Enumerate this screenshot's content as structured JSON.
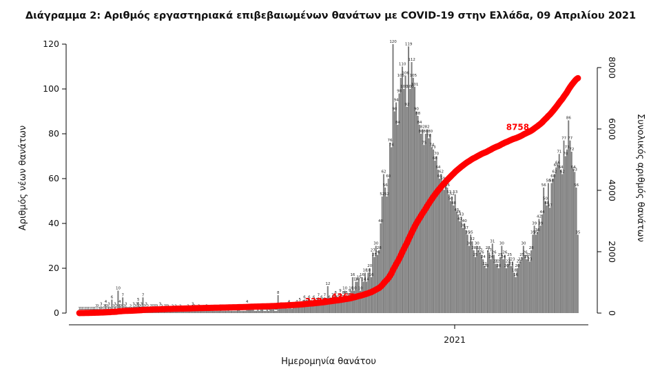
{
  "chart_data": {
    "type": "bar",
    "title": "Διάγραμμα 2: Αριθμός εργαστηριακά επιβεβαιωμένων θανάτων με COVID-19 στην Ελλάδα, 09 Απριλίου 2021",
    "xlabel": "Ημερομηνία θανάτου",
    "ylabel_left": "Αριθμός νέων θανάτων",
    "ylabel_right": "Συνολικός αριθμός θανάτων",
    "x_tick_labels": [
      "2021"
    ],
    "ylim_left": [
      0,
      120
    ],
    "yticks_left": [
      0,
      20,
      40,
      60,
      80,
      100,
      120
    ],
    "ylim_right": [
      0,
      8800
    ],
    "yticks_right": [
      0,
      2000,
      4000,
      6000,
      8000
    ],
    "grid": false,
    "legend": "none",
    "colors": {
      "bars": "#808080",
      "cumulative": "#ff0000"
    },
    "daily_deaths": [
      1,
      1,
      1,
      1,
      1,
      1,
      1,
      1,
      1,
      1,
      1,
      2,
      2,
      1,
      3,
      1,
      2,
      4,
      2,
      3,
      1,
      6,
      2,
      3,
      2,
      10,
      4,
      2,
      7,
      2,
      3,
      1,
      1,
      2,
      1,
      3,
      2,
      3,
      5,
      2,
      3,
      7,
      2,
      3,
      2,
      1,
      2,
      2,
      2,
      2,
      2,
      1,
      3,
      2,
      1,
      2,
      2,
      2,
      1,
      1,
      2,
      1,
      2,
      1,
      1,
      2,
      1,
      1,
      1,
      1,
      2,
      1,
      1,
      3,
      2,
      1,
      1,
      2,
      1,
      1,
      1,
      1,
      2,
      1,
      1,
      1,
      1,
      1,
      1,
      1,
      1,
      2,
      1,
      1,
      1,
      1,
      2,
      1,
      1,
      1,
      1,
      1,
      2,
      2,
      1,
      1,
      1,
      1,
      4,
      2,
      2,
      2,
      2,
      1,
      1,
      2,
      1,
      2,
      2,
      1,
      1,
      2,
      1,
      2,
      2,
      2,
      1,
      1,
      8,
      2,
      3,
      2,
      2,
      3,
      2,
      4,
      3,
      2,
      3,
      3,
      4,
      3,
      5,
      3,
      4,
      6,
      4,
      5,
      6,
      4,
      3,
      6,
      4,
      5,
      7,
      4,
      6,
      5,
      7,
      5,
      12,
      6,
      5,
      7,
      6,
      8,
      6,
      7,
      9,
      6,
      8,
      10,
      8,
      7,
      9,
      10,
      16,
      10,
      14,
      14,
      15,
      10,
      16,
      14,
      18,
      14,
      18,
      20,
      16,
      27,
      25,
      30,
      26,
      28,
      40,
      52,
      62,
      56,
      52,
      60,
      76,
      74,
      120,
      90,
      94,
      84,
      98,
      105,
      110,
      100,
      106,
      92,
      119,
      100,
      112,
      105,
      101,
      90,
      88,
      84,
      80,
      82,
      75,
      80,
      82,
      78,
      80,
      74,
      73,
      68,
      70,
      64,
      60,
      62,
      59,
      55,
      57,
      56,
      53,
      50,
      52,
      48,
      53,
      45,
      44,
      41,
      43,
      38,
      40,
      37,
      35,
      30,
      35,
      32,
      28,
      25,
      30,
      28,
      27,
      26,
      24,
      21,
      20,
      28,
      27,
      24,
      31,
      26,
      22,
      22,
      20,
      25,
      30,
      24,
      26,
      20,
      22,
      25,
      21,
      23,
      18,
      16,
      20,
      22,
      23,
      25,
      30,
      26,
      24,
      25,
      23,
      28,
      35,
      39,
      35,
      36,
      42,
      39,
      44,
      56,
      50,
      48,
      58,
      47,
      58,
      60,
      62,
      65,
      66,
      71,
      64,
      62,
      77,
      70,
      73,
      86,
      77,
      72,
      64,
      63,
      56,
      35
    ],
    "cumulative_labels": [
      {
        "text": "2270",
        "day": 161
      },
      {
        "text": "4367",
        "day": 178
      },
      {
        "text": "8758",
        "day": 284
      }
    ]
  }
}
